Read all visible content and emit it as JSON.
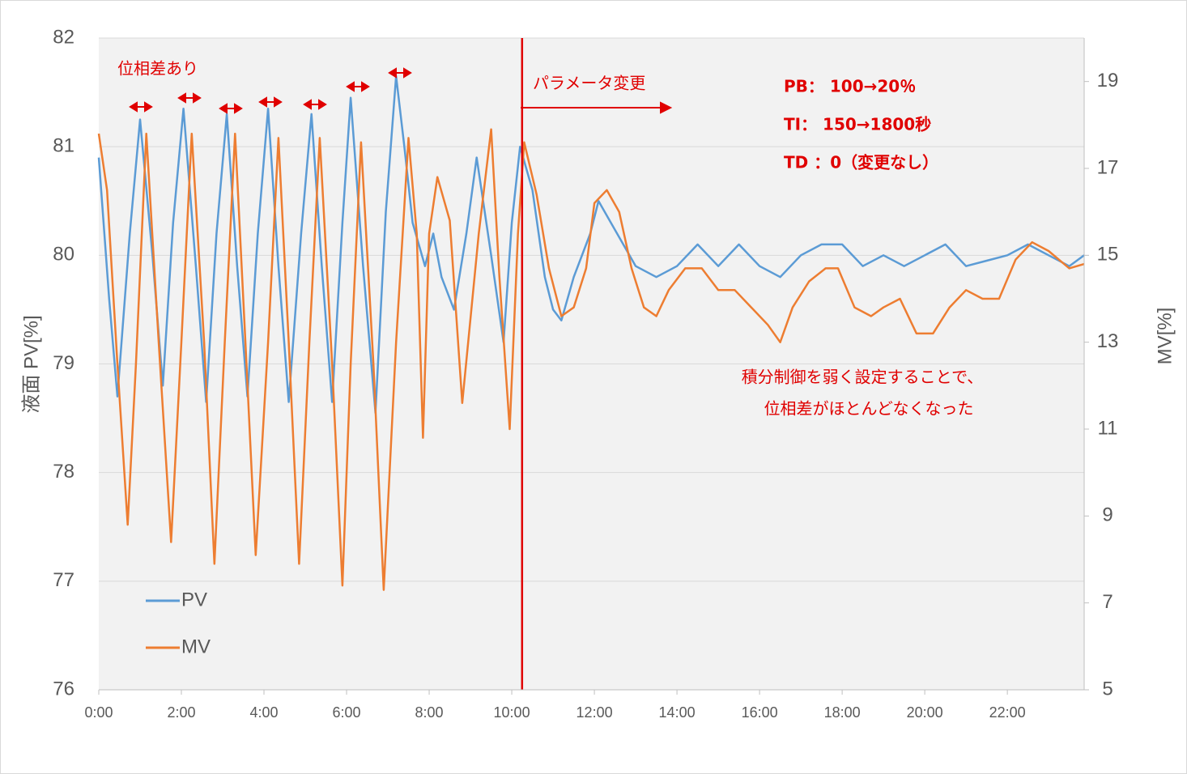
{
  "chart_data": {
    "type": "line",
    "y_label": "液面 PV[%]",
    "y2_label": "MV[%]",
    "xlim": [
      0,
      23.86
    ],
    "xticks": [
      {
        "value": 0,
        "label": "0:00"
      },
      {
        "value": 2,
        "label": "2:00"
      },
      {
        "value": 4,
        "label": "4:00"
      },
      {
        "value": 6,
        "label": "6:00"
      },
      {
        "value": 8,
        "label": "8:00"
      },
      {
        "value": 10,
        "label": "10:00"
      },
      {
        "value": 12,
        "label": "12:00"
      },
      {
        "value": 14,
        "label": "14:00"
      },
      {
        "value": 16,
        "label": "16:00"
      },
      {
        "value": 18,
        "label": "18:00"
      },
      {
        "value": 20,
        "label": "20:00"
      },
      {
        "value": 22,
        "label": "22:00"
      }
    ],
    "ylim": [
      76,
      82
    ],
    "yticks": [
      76,
      77,
      78,
      79,
      80,
      81,
      82
    ],
    "y2lim": [
      5,
      20
    ],
    "y2ticks": [
      5,
      7,
      9,
      11,
      13,
      15,
      17,
      19
    ],
    "grid": true,
    "parameter_change_x": 10.25,
    "annotations": [
      "位相差あり",
      "パラメータ変更",
      "PB： 100→20％",
      "TI： 150→1800秒",
      "TD ：0（変更なし）",
      "積分制御を弱く設定することで、",
      "位相差がほとんどなくなった"
    ],
    "series": [
      {
        "name": "PV",
        "color": "#5b9bd5",
        "axis": "y",
        "x": [
          0,
          0.25,
          0.45,
          0.75,
          1.0,
          1.3,
          1.55,
          1.8,
          2.05,
          2.35,
          2.6,
          2.85,
          3.1,
          3.35,
          3.6,
          3.85,
          4.1,
          4.35,
          4.6,
          4.9,
          5.15,
          5.4,
          5.65,
          5.9,
          6.1,
          6.4,
          6.7,
          6.95,
          7.2,
          7.4,
          7.6,
          7.9,
          8.1,
          8.3,
          8.6,
          8.9,
          9.15,
          9.5,
          9.8,
          10.0,
          10.2,
          10.5,
          10.8,
          11.0,
          11.2,
          11.5,
          11.9,
          12.1,
          12.4,
          12.7,
          13.0,
          13.5,
          14.0,
          14.5,
          15.0,
          15.5,
          16.0,
          16.5,
          17.0,
          17.5,
          18.0,
          18.5,
          19.0,
          19.5,
          20.0,
          20.5,
          21.0,
          21.5,
          22.0,
          22.5,
          23.0,
          23.5,
          23.86
        ],
        "values": [
          80.9,
          79.6,
          78.7,
          80.2,
          81.25,
          80.0,
          78.8,
          80.3,
          81.35,
          79.9,
          78.65,
          80.2,
          81.3,
          79.9,
          78.7,
          80.2,
          81.35,
          79.9,
          78.65,
          80.2,
          81.3,
          79.9,
          78.65,
          80.3,
          81.45,
          79.9,
          78.55,
          80.4,
          81.65,
          81.0,
          80.3,
          79.9,
          80.2,
          79.8,
          79.5,
          80.2,
          80.9,
          80.0,
          79.2,
          80.3,
          81.0,
          80.6,
          79.8,
          79.5,
          79.4,
          79.8,
          80.2,
          80.5,
          80.3,
          80.1,
          79.9,
          79.8,
          79.9,
          80.1,
          79.9,
          80.1,
          79.9,
          79.8,
          80.0,
          80.1,
          80.1,
          79.9,
          80.0,
          79.9,
          80.0,
          80.1,
          79.9,
          79.95,
          80.0,
          80.1,
          80.0,
          79.9,
          80.0
        ]
      },
      {
        "name": "MV",
        "color": "#ed7d31",
        "axis": "y2",
        "x": [
          0,
          0.2,
          0.45,
          0.7,
          0.9,
          1.15,
          1.45,
          1.75,
          2.0,
          2.25,
          2.55,
          2.8,
          3.05,
          3.3,
          3.55,
          3.8,
          4.1,
          4.35,
          4.6,
          4.85,
          5.1,
          5.35,
          5.65,
          5.9,
          6.1,
          6.35,
          6.65,
          6.9,
          7.2,
          7.5,
          7.7,
          7.85,
          8.0,
          8.2,
          8.5,
          8.8,
          9.2,
          9.5,
          9.7,
          9.95,
          10.15,
          10.3,
          10.6,
          10.9,
          11.2,
          11.5,
          11.8,
          12.0,
          12.3,
          12.6,
          12.9,
          13.2,
          13.5,
          13.8,
          14.2,
          14.6,
          15.0,
          15.4,
          15.8,
          16.2,
          16.5,
          16.8,
          17.2,
          17.6,
          17.9,
          18.3,
          18.7,
          19.0,
          19.4,
          19.8,
          20.2,
          20.6,
          21.0,
          21.4,
          21.8,
          22.2,
          22.6,
          23.0,
          23.5,
          23.86
        ],
        "values": [
          17.8,
          16.5,
          12.5,
          8.8,
          12.5,
          17.8,
          13.0,
          8.4,
          13.0,
          17.8,
          13.0,
          7.9,
          13.0,
          17.8,
          13.0,
          8.1,
          13.0,
          17.7,
          13.0,
          7.9,
          13.0,
          17.7,
          12.5,
          7.4,
          12.5,
          17.6,
          12.5,
          7.3,
          13.0,
          17.7,
          15.5,
          10.8,
          15.5,
          16.8,
          15.8,
          11.6,
          15.5,
          17.9,
          14.5,
          11.0,
          15.5,
          17.6,
          16.4,
          14.7,
          13.6,
          13.8,
          14.7,
          16.2,
          16.5,
          16.0,
          14.7,
          13.8,
          13.6,
          14.2,
          14.7,
          14.7,
          14.2,
          14.2,
          13.8,
          13.4,
          13.0,
          13.8,
          14.4,
          14.7,
          14.7,
          13.8,
          13.6,
          13.8,
          14.0,
          13.2,
          13.2,
          13.8,
          14.2,
          14.0,
          14.0,
          14.9,
          15.3,
          15.1,
          14.7,
          14.8
        ]
      }
    ]
  }
}
